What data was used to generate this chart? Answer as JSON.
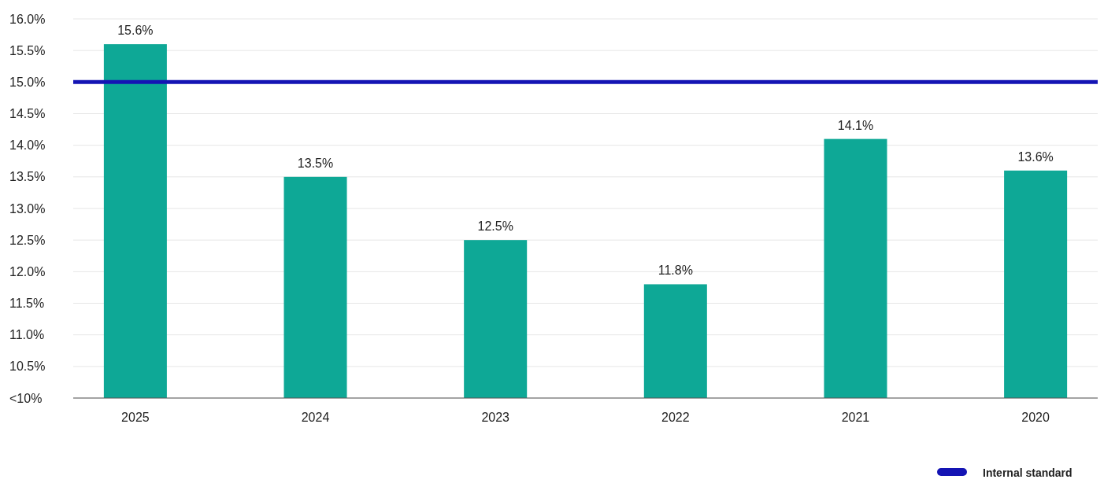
{
  "chart_data": {
    "type": "bar",
    "categories": [
      "2025",
      "2024",
      "2023",
      "2022",
      "2021",
      "2020"
    ],
    "series": [
      {
        "color": "#0ea896",
        "values": [
          15.6,
          13.5,
          12.5,
          11.8,
          14.1,
          13.6
        ],
        "value_labels": [
          "15.6%",
          "13.5%",
          "12.5%",
          "11.8%",
          "14.1%",
          "13.6%"
        ]
      }
    ],
    "ylim": [
      10,
      16
    ],
    "yticks": [
      {
        "value": 10,
        "label": "<10%"
      },
      {
        "value": 10.5,
        "label": "10.5%"
      },
      {
        "value": 11,
        "label": "11.0%"
      },
      {
        "value": 11.5,
        "label": "11.5%"
      },
      {
        "value": 12,
        "label": "12.0%"
      },
      {
        "value": 12.5,
        "label": "12.5%"
      },
      {
        "value": 13,
        "label": "13.0%"
      },
      {
        "value": 13.5,
        "label": "13.5%"
      },
      {
        "value": 14,
        "label": "14.0%"
      },
      {
        "value": 14.5,
        "label": "14.5%"
      },
      {
        "value": 15,
        "label": "15.0%"
      },
      {
        "value": 15.5,
        "label": "15.5%"
      },
      {
        "value": 16,
        "label": "16.0%"
      }
    ],
    "ref_lines": [
      {
        "axis": "y",
        "value": 15,
        "label": "Internal standard",
        "color": "#1414b4"
      }
    ],
    "grid": "y",
    "legend": "bottom right"
  }
}
